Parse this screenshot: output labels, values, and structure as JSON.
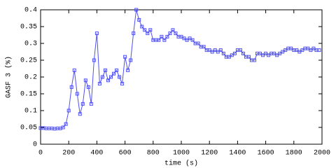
{
  "chart_data": {
    "type": "line",
    "x_label": "time (s)",
    "y_label": "GASF 3 (%)",
    "x": [
      0,
      20,
      40,
      60,
      80,
      100,
      120,
      140,
      160,
      180,
      200,
      220,
      240,
      260,
      280,
      300,
      320,
      340,
      360,
      380,
      400,
      420,
      440,
      460,
      480,
      500,
      520,
      540,
      560,
      580,
      600,
      620,
      640,
      660,
      680,
      700,
      720,
      740,
      760,
      780,
      800,
      820,
      840,
      860,
      880,
      900,
      920,
      940,
      960,
      980,
      1000,
      1020,
      1040,
      1060,
      1080,
      1100,
      1120,
      1140,
      1160,
      1180,
      1200,
      1220,
      1240,
      1260,
      1280,
      1300,
      1320,
      1340,
      1360,
      1380,
      1400,
      1420,
      1440,
      1460,
      1480,
      1500,
      1520,
      1540,
      1560,
      1580,
      1600,
      1620,
      1640,
      1660,
      1680,
      1700,
      1720,
      1740,
      1760,
      1780,
      1800,
      1820,
      1840,
      1860,
      1880,
      1900,
      1920,
      1940,
      1960,
      1980
    ],
    "series": [
      {
        "name": "GASF 3",
        "color": "#5050f0",
        "values": [
          0.048,
          0.048,
          0.047,
          0.047,
          0.047,
          0.046,
          0.047,
          0.047,
          0.05,
          0.06,
          0.1,
          0.17,
          0.22,
          0.15,
          0.09,
          0.12,
          0.19,
          0.17,
          0.12,
          0.25,
          0.33,
          0.18,
          0.2,
          0.22,
          0.19,
          0.2,
          0.21,
          0.22,
          0.2,
          0.18,
          0.26,
          0.22,
          0.25,
          0.33,
          0.4,
          0.37,
          0.35,
          0.34,
          0.33,
          0.34,
          0.31,
          0.31,
          0.31,
          0.32,
          0.31,
          0.32,
          0.33,
          0.34,
          0.33,
          0.32,
          0.32,
          0.315,
          0.31,
          0.315,
          0.31,
          0.3,
          0.3,
          0.29,
          0.29,
          0.28,
          0.28,
          0.275,
          0.28,
          0.275,
          0.28,
          0.27,
          0.26,
          0.26,
          0.265,
          0.27,
          0.28,
          0.28,
          0.27,
          0.26,
          0.26,
          0.25,
          0.25,
          0.27,
          0.27,
          0.265,
          0.27,
          0.265,
          0.27,
          0.27,
          0.265,
          0.27,
          0.275,
          0.28,
          0.285,
          0.285,
          0.28,
          0.28,
          0.275,
          0.28,
          0.285,
          0.285,
          0.28,
          0.285,
          0.28,
          0.28
        ]
      }
    ],
    "xlim": [
      0,
      2000
    ],
    "xticks": [
      0,
      200,
      400,
      600,
      800,
      1000,
      1200,
      1400,
      1600,
      1800,
      2000
    ],
    "ylim": [
      0,
      0.4
    ],
    "yticks": [
      0,
      0.05,
      0.1,
      0.15,
      0.2,
      0.25,
      0.3,
      0.35,
      0.4
    ],
    "grid": false
  }
}
